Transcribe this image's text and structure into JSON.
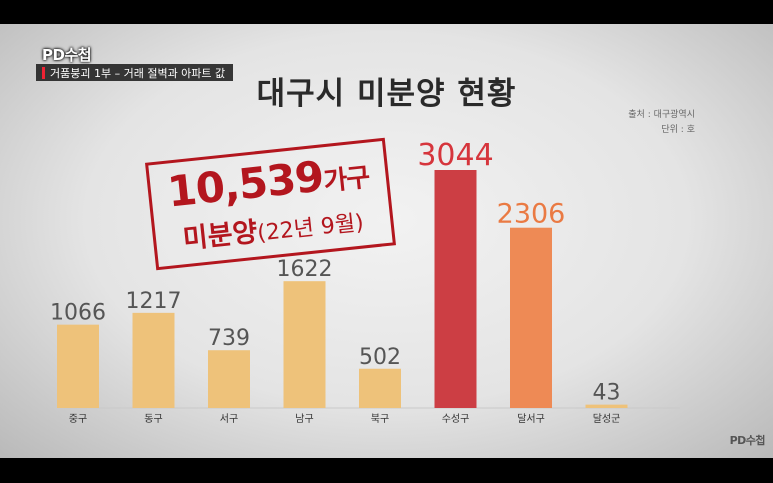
{
  "program": {
    "logo": "PD수첩",
    "episode_title": "거품붕괴 1부 – 거래 절벽과 아파트 값",
    "watermark": "PD수첩"
  },
  "source_note": {
    "source": "출처 : 대구광역시",
    "unit": "단위 : 호"
  },
  "callout": {
    "total_number": "10,539",
    "total_unit": "가구",
    "label": "미분양",
    "date": "(22년 9월)"
  },
  "chart_data": {
    "type": "bar",
    "title": "대구시  미분양 현황",
    "categories": [
      "중구",
      "동구",
      "서구",
      "남구",
      "북구",
      "수성구",
      "달서구",
      "달성군"
    ],
    "values": [
      1066,
      1217,
      739,
      1622,
      502,
      3044,
      2306,
      43
    ],
    "value_labels": [
      "1066",
      "1217",
      "739",
      "1622",
      "502",
      "3044",
      "2306",
      "43"
    ],
    "ylim": [
      0,
      3044
    ],
    "grid": false,
    "colors": {
      "default": "#eec27a",
      "highest": "#cc3e44",
      "second": "#ee8a55",
      "label_default": "#555555",
      "label_highest": "#d6353c",
      "label_second": "#ea7a43"
    }
  }
}
